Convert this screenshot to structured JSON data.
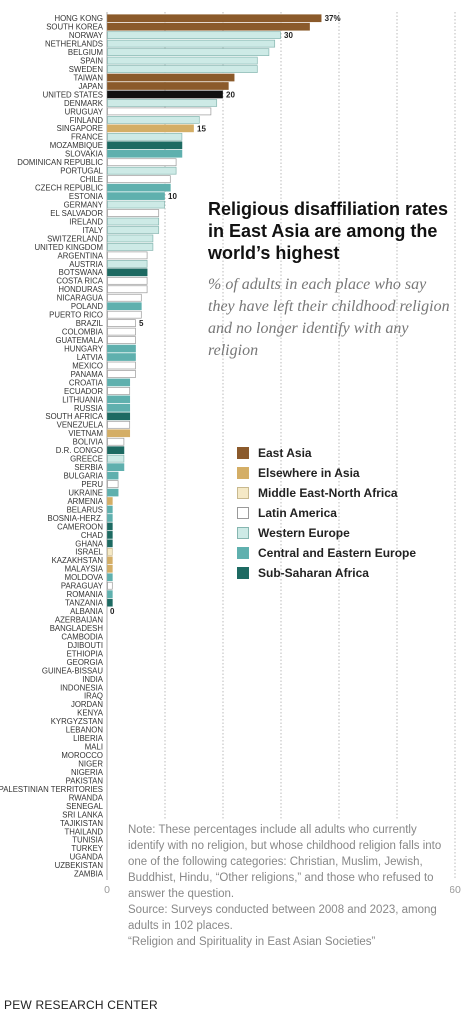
{
  "title": "Religious disaffiliation rates in East Asia are among the world’s highest",
  "subtitle": "% of adults in each place who say they have left their childhood religion and no longer identify with any religion",
  "legend": [
    {
      "label": "East Asia",
      "color": "#8b5a2b",
      "border": "#8b5a2b"
    },
    {
      "label": "Elsewhere in Asia",
      "color": "#d4ae66",
      "border": "#d4ae66"
    },
    {
      "label": "Middle East-North Africa",
      "color": "#f5e9c6",
      "border": "#c8b98f"
    },
    {
      "label": "Latin America",
      "color": "#ffffff",
      "border": "#9a9a9a"
    },
    {
      "label": "Western Europe",
      "color": "#cdeae6",
      "border": "#86b6b0"
    },
    {
      "label": "Central and Eastern Europe",
      "color": "#5fb0ae",
      "border": "#5fb0ae"
    },
    {
      "label": "Sub-Saharan Africa",
      "color": "#1d6a62",
      "border": "#1d6a62"
    }
  ],
  "notes": [
    "Note: These percentages include all adults who currently identify with no religion, but whose childhood religion falls into one of the following categories: Christian, Muslim, Jewish, Buddhist, Hindu, “Other religions,” and those who refused to answer the question.",
    "Source: Surveys conducted between 2008 and 2023, among adults in 102 places.",
    "“Religion and Spirituality in East Asian Societies”"
  ],
  "footer": "PEW RESEARCH CENTER",
  "chart_data": {
    "type": "bar",
    "orientation": "horizontal",
    "xlim": [
      0,
      60
    ],
    "xticks": [
      0,
      10,
      20,
      30,
      40,
      50,
      60
    ],
    "colors": {
      "EA": {
        "fill": "#8b5a2b",
        "stroke": "#8b5a2b"
      },
      "AS": {
        "fill": "#d4ae66",
        "stroke": "#d4ae66"
      },
      "US": {
        "fill": "#111111",
        "stroke": "#111111"
      },
      "MENA": {
        "fill": "#f5e9c6",
        "stroke": "#c8b98f"
      },
      "LA": {
        "fill": "#ffffff",
        "stroke": "#9a9a9a"
      },
      "WE": {
        "fill": "#cdeae6",
        "stroke": "#86b6b0"
      },
      "CEE": {
        "fill": "#5fb0ae",
        "stroke": "#5fb0ae"
      },
      "SSA": {
        "fill": "#1d6a62",
        "stroke": "#1d6a62"
      }
    },
    "bars": [
      {
        "c": "HONG KONG",
        "v": 37,
        "r": "EA",
        "label": "37%"
      },
      {
        "c": "SOUTH KOREA",
        "v": 35,
        "r": "EA"
      },
      {
        "c": "NORWAY",
        "v": 30,
        "r": "WE",
        "label": "30"
      },
      {
        "c": "NETHERLANDS",
        "v": 29,
        "r": "WE"
      },
      {
        "c": "BELGIUM",
        "v": 28,
        "r": "WE"
      },
      {
        "c": "SPAIN",
        "v": 26,
        "r": "WE"
      },
      {
        "c": "SWEDEN",
        "v": 26,
        "r": "WE"
      },
      {
        "c": "TAIWAN",
        "v": 22,
        "r": "EA"
      },
      {
        "c": "JAPAN",
        "v": 21,
        "r": "EA"
      },
      {
        "c": "UNITED STATES",
        "v": 20,
        "r": "US",
        "label": "20"
      },
      {
        "c": "DENMARK",
        "v": 19,
        "r": "WE"
      },
      {
        "c": "URUGUAY",
        "v": 18,
        "r": "LA"
      },
      {
        "c": "FINLAND",
        "v": 16,
        "r": "WE"
      },
      {
        "c": "SINGAPORE",
        "v": 15,
        "r": "AS",
        "label": "15"
      },
      {
        "c": "FRANCE",
        "v": 13,
        "r": "WE"
      },
      {
        "c": "MOZAMBIQUE",
        "v": 13,
        "r": "SSA"
      },
      {
        "c": "SLOVAKIA",
        "v": 13,
        "r": "CEE"
      },
      {
        "c": "DOMINICAN REPUBLIC",
        "v": 12,
        "r": "LA"
      },
      {
        "c": "PORTUGAL",
        "v": 12,
        "r": "WE"
      },
      {
        "c": "CHILE",
        "v": 11,
        "r": "LA"
      },
      {
        "c": "CZECH REPUBLIC",
        "v": 11,
        "r": "CEE"
      },
      {
        "c": "ESTONIA",
        "v": 10,
        "r": "CEE",
        "label": "10"
      },
      {
        "c": "GERMANY",
        "v": 10,
        "r": "WE"
      },
      {
        "c": "EL SALVADOR",
        "v": 9,
        "r": "LA"
      },
      {
        "c": "IRELAND",
        "v": 9,
        "r": "WE"
      },
      {
        "c": "ITALY",
        "v": 9,
        "r": "WE"
      },
      {
        "c": "SWITZERLAND",
        "v": 8,
        "r": "WE"
      },
      {
        "c": "UNITED KINGDOM",
        "v": 8,
        "r": "WE"
      },
      {
        "c": "ARGENTINA",
        "v": 7,
        "r": "LA"
      },
      {
        "c": "AUSTRIA",
        "v": 7,
        "r": "WE"
      },
      {
        "c": "BOTSWANA",
        "v": 7,
        "r": "SSA"
      },
      {
        "c": "COSTA RICA",
        "v": 7,
        "r": "LA"
      },
      {
        "c": "HONDURAS",
        "v": 7,
        "r": "LA"
      },
      {
        "c": "NICARAGUA",
        "v": 6,
        "r": "LA"
      },
      {
        "c": "POLAND",
        "v": 6,
        "r": "CEE"
      },
      {
        "c": "PUERTO RICO",
        "v": 6,
        "r": "LA"
      },
      {
        "c": "BRAZIL",
        "v": 5,
        "r": "LA",
        "label": "5"
      },
      {
        "c": "COLOMBIA",
        "v": 5,
        "r": "LA"
      },
      {
        "c": "GUATEMALA",
        "v": 5,
        "r": "LA"
      },
      {
        "c": "HUNGARY",
        "v": 5,
        "r": "CEE"
      },
      {
        "c": "LATVIA",
        "v": 5,
        "r": "CEE"
      },
      {
        "c": "MEXICO",
        "v": 5,
        "r": "LA"
      },
      {
        "c": "PANAMA",
        "v": 5,
        "r": "LA"
      },
      {
        "c": "CROATIA",
        "v": 4,
        "r": "CEE"
      },
      {
        "c": "ECUADOR",
        "v": 4,
        "r": "LA"
      },
      {
        "c": "LITHUANIA",
        "v": 4,
        "r": "CEE"
      },
      {
        "c": "RUSSIA",
        "v": 4,
        "r": "CEE"
      },
      {
        "c": "SOUTH AFRICA",
        "v": 4,
        "r": "SSA"
      },
      {
        "c": "VENEZUELA",
        "v": 4,
        "r": "LA"
      },
      {
        "c": "VIETNAM",
        "v": 4,
        "r": "AS"
      },
      {
        "c": "BOLIVIA",
        "v": 3,
        "r": "LA"
      },
      {
        "c": "D.R. CONGO",
        "v": 3,
        "r": "SSA"
      },
      {
        "c": "GREECE",
        "v": 3,
        "r": "WE"
      },
      {
        "c": "SERBIA",
        "v": 3,
        "r": "CEE"
      },
      {
        "c": "BULGARIA",
        "v": 2,
        "r": "CEE"
      },
      {
        "c": "PERU",
        "v": 2,
        "r": "LA"
      },
      {
        "c": "UKRAINE",
        "v": 2,
        "r": "CEE"
      },
      {
        "c": "ARMENIA",
        "v": 1,
        "r": "AS"
      },
      {
        "c": "BELARUS",
        "v": 1,
        "r": "CEE"
      },
      {
        "c": "BOSNIA-HERZ.",
        "v": 1,
        "r": "CEE"
      },
      {
        "c": "CAMEROON",
        "v": 1,
        "r": "SSA"
      },
      {
        "c": "CHAD",
        "v": 1,
        "r": "SSA"
      },
      {
        "c": "GHANA",
        "v": 1,
        "r": "SSA"
      },
      {
        "c": "ISRAEL",
        "v": 1,
        "r": "MENA"
      },
      {
        "c": "KAZAKHSTAN",
        "v": 1,
        "r": "AS"
      },
      {
        "c": "MALAYSIA",
        "v": 1,
        "r": "AS"
      },
      {
        "c": "MOLDOVA",
        "v": 1,
        "r": "CEE"
      },
      {
        "c": "PARAGUAY",
        "v": 1,
        "r": "LA"
      },
      {
        "c": "ROMANIA",
        "v": 1,
        "r": "CEE"
      },
      {
        "c": "TANZANIA",
        "v": 1,
        "r": "SSA"
      },
      {
        "c": "ALBANIA",
        "v": 0,
        "r": "CEE",
        "label": "0"
      },
      {
        "c": "AZERBAIJAN",
        "v": 0,
        "r": "AS"
      },
      {
        "c": "BANGLADESH",
        "v": 0,
        "r": "AS"
      },
      {
        "c": "CAMBODIA",
        "v": 0,
        "r": "AS"
      },
      {
        "c": "DJIBOUTI",
        "v": 0,
        "r": "MENA"
      },
      {
        "c": "ETHIOPIA",
        "v": 0,
        "r": "SSA"
      },
      {
        "c": "GEORGIA",
        "v": 0,
        "r": "CEE"
      },
      {
        "c": "GUINEA-BISSAU",
        "v": 0,
        "r": "SSA"
      },
      {
        "c": "INDIA",
        "v": 0,
        "r": "AS"
      },
      {
        "c": "INDONESIA",
        "v": 0,
        "r": "AS"
      },
      {
        "c": "IRAQ",
        "v": 0,
        "r": "MENA"
      },
      {
        "c": "JORDAN",
        "v": 0,
        "r": "MENA"
      },
      {
        "c": "KENYA",
        "v": 0,
        "r": "SSA"
      },
      {
        "c": "KYRGYZSTAN",
        "v": 0,
        "r": "AS"
      },
      {
        "c": "LEBANON",
        "v": 0,
        "r": "MENA"
      },
      {
        "c": "LIBERIA",
        "v": 0,
        "r": "SSA"
      },
      {
        "c": "MALI",
        "v": 0,
        "r": "SSA"
      },
      {
        "c": "MOROCCO",
        "v": 0,
        "r": "MENA"
      },
      {
        "c": "NIGER",
        "v": 0,
        "r": "SSA"
      },
      {
        "c": "NIGERIA",
        "v": 0,
        "r": "SSA"
      },
      {
        "c": "PAKISTAN",
        "v": 0,
        "r": "AS"
      },
      {
        "c": "PALESTINIAN TERRITORIES",
        "v": 0,
        "r": "MENA"
      },
      {
        "c": "RWANDA",
        "v": 0,
        "r": "SSA"
      },
      {
        "c": "SENEGAL",
        "v": 0,
        "r": "SSA"
      },
      {
        "c": "SRI LANKA",
        "v": 0,
        "r": "AS"
      },
      {
        "c": "TAJIKISTAN",
        "v": 0,
        "r": "AS"
      },
      {
        "c": "THAILAND",
        "v": 0,
        "r": "AS"
      },
      {
        "c": "TUNISIA",
        "v": 0,
        "r": "MENA"
      },
      {
        "c": "TURKEY",
        "v": 0,
        "r": "MENA"
      },
      {
        "c": "UGANDA",
        "v": 0,
        "r": "SSA"
      },
      {
        "c": "UZBEKISTAN",
        "v": 0,
        "r": "AS"
      },
      {
        "c": "ZAMBIA",
        "v": 0,
        "r": "SSA"
      }
    ]
  }
}
